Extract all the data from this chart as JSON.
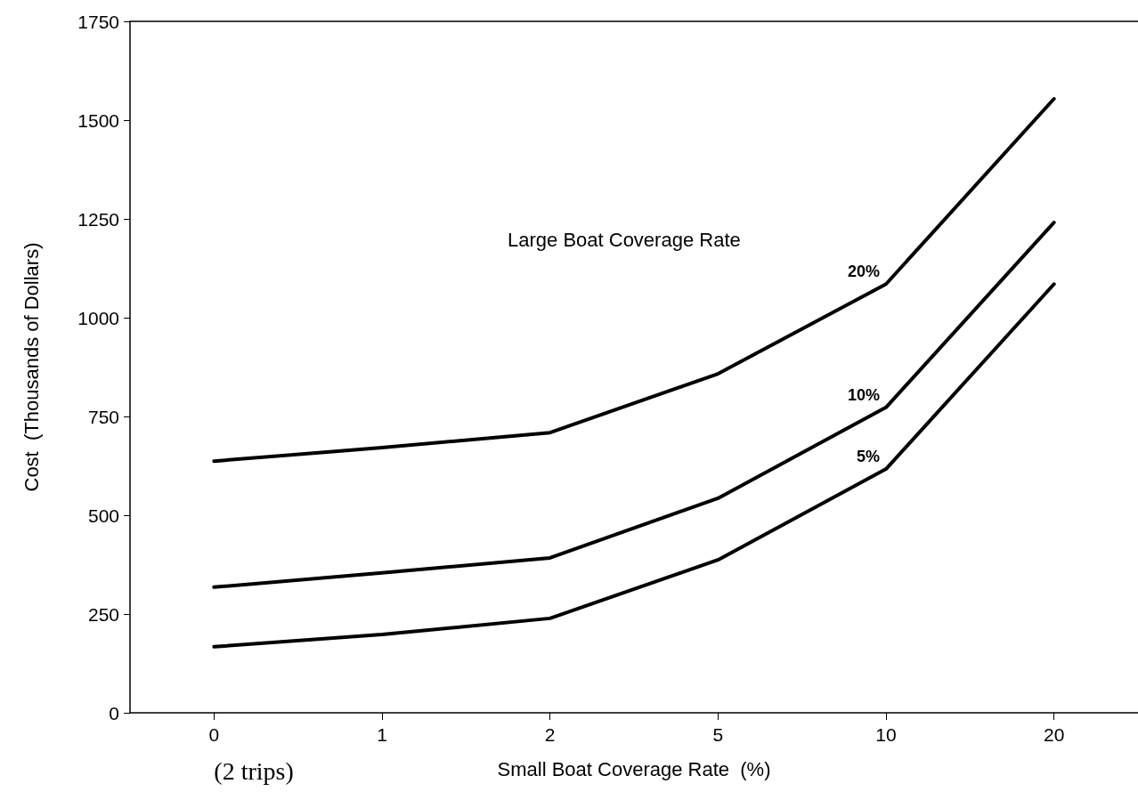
{
  "chart_data": {
    "type": "line",
    "xlabel": "Small Boat Coverage Rate  (%)",
    "ylabel": "Cost  (Thousands of Dollars)",
    "legend_title": "Large Boat Coverage Rate",
    "categories": [
      "0",
      "1",
      "2",
      "5",
      "10",
      "20"
    ],
    "series": [
      {
        "name": "20%",
        "color": "#000000",
        "values": [
          637,
          671,
          709,
          858,
          1085,
          1554
        ]
      },
      {
        "name": "10%",
        "color": "#000000",
        "values": [
          318,
          354,
          392,
          543,
          773,
          1241
        ]
      },
      {
        "name": "5%",
        "color": "#000000",
        "values": [
          167,
          198,
          239,
          387,
          617,
          1085
        ]
      }
    ],
    "ylim": [
      0,
      1750
    ],
    "yticks": [
      0,
      250,
      500,
      750,
      1000,
      1250,
      1500,
      1750
    ],
    "grid": false,
    "legend": false,
    "line_style": "solid",
    "annotations": [
      "(2 trips)"
    ]
  }
}
